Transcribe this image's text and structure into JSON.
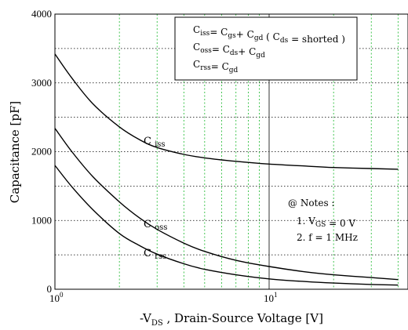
{
  "chart_data": {
    "type": "line",
    "xlabel": "-V",
    "xlabel_sub": "DS",
    "xlabel_rest": " , Drain-Source Voltage [V]",
    "ylabel": "Capacitance  [pF]",
    "xscale": "log",
    "xlim": [
      1,
      40
    ],
    "ylim": [
      0,
      4000
    ],
    "x_ticks": [
      {
        "base": "10",
        "exp": "0",
        "value": 1
      },
      {
        "base": "10",
        "exp": "1",
        "value": 10
      }
    ],
    "y_ticks": [
      "0",
      "1000",
      "2000",
      "3000",
      "4000"
    ],
    "y_tick_values": [
      0,
      1000,
      2000,
      3000,
      4000
    ],
    "grid": "dotted (horizontal black every 500 pF, vertical green at log minors)",
    "series": [
      {
        "name": "Ciss",
        "label_base": "C",
        "label_sub": "iss",
        "x": [
          1,
          1.2,
          1.5,
          2,
          2.5,
          3,
          4,
          5,
          7,
          10,
          15,
          20,
          30,
          40
        ],
        "y": [
          3420,
          3070,
          2700,
          2360,
          2170,
          2060,
          1960,
          1910,
          1860,
          1820,
          1790,
          1770,
          1755,
          1745
        ]
      },
      {
        "name": "Coss",
        "label_base": "C",
        "label_sub": "oss",
        "x": [
          1,
          1.2,
          1.5,
          2,
          2.5,
          3,
          4,
          5,
          7,
          10,
          15,
          20,
          30,
          40
        ],
        "y": [
          2340,
          2000,
          1640,
          1270,
          1030,
          870,
          670,
          550,
          420,
          330,
          250,
          210,
          170,
          140
        ]
      },
      {
        "name": "Crss",
        "label_base": "C",
        "label_sub": "rss",
        "x": [
          1,
          1.2,
          1.5,
          2,
          2.5,
          3,
          4,
          5,
          7,
          10,
          15,
          20,
          30,
          40
        ],
        "y": [
          1800,
          1490,
          1160,
          810,
          630,
          510,
          370,
          290,
          210,
          150,
          110,
          90,
          70,
          60
        ]
      }
    ],
    "legend": {
      "placement": "top-center",
      "lines": [
        {
          "parts": [
            {
              "t": "C"
            },
            {
              "s": "iss"
            },
            {
              "t": "= C"
            },
            {
              "s": "gs"
            },
            {
              "t": "+ C"
            },
            {
              "s": "gd"
            },
            {
              "t": " ( C"
            },
            {
              "s": "ds"
            },
            {
              "t": " = shorted )"
            }
          ]
        },
        {
          "parts": [
            {
              "t": "C"
            },
            {
              "s": "oss"
            },
            {
              "t": "= C"
            },
            {
              "s": "ds"
            },
            {
              "t": "+ C"
            },
            {
              "s": "gd"
            }
          ]
        },
        {
          "parts": [
            {
              "t": "C"
            },
            {
              "s": "rss"
            },
            {
              "t": "= C"
            },
            {
              "s": "gd"
            }
          ]
        }
      ]
    },
    "notes": {
      "title": "@ Notes :",
      "lines": [
        {
          "parts": [
            {
              "t": "1. V"
            },
            {
              "s": "GS"
            },
            {
              "t": " = 0 V"
            }
          ]
        },
        {
          "parts": [
            {
              "t": "2. f = 1 MHz"
            }
          ]
        }
      ]
    },
    "colors": {
      "curve": "#000000",
      "major_grid": "#000000",
      "minor_grid": "#2fbf3f",
      "axis": "#000000"
    }
  }
}
